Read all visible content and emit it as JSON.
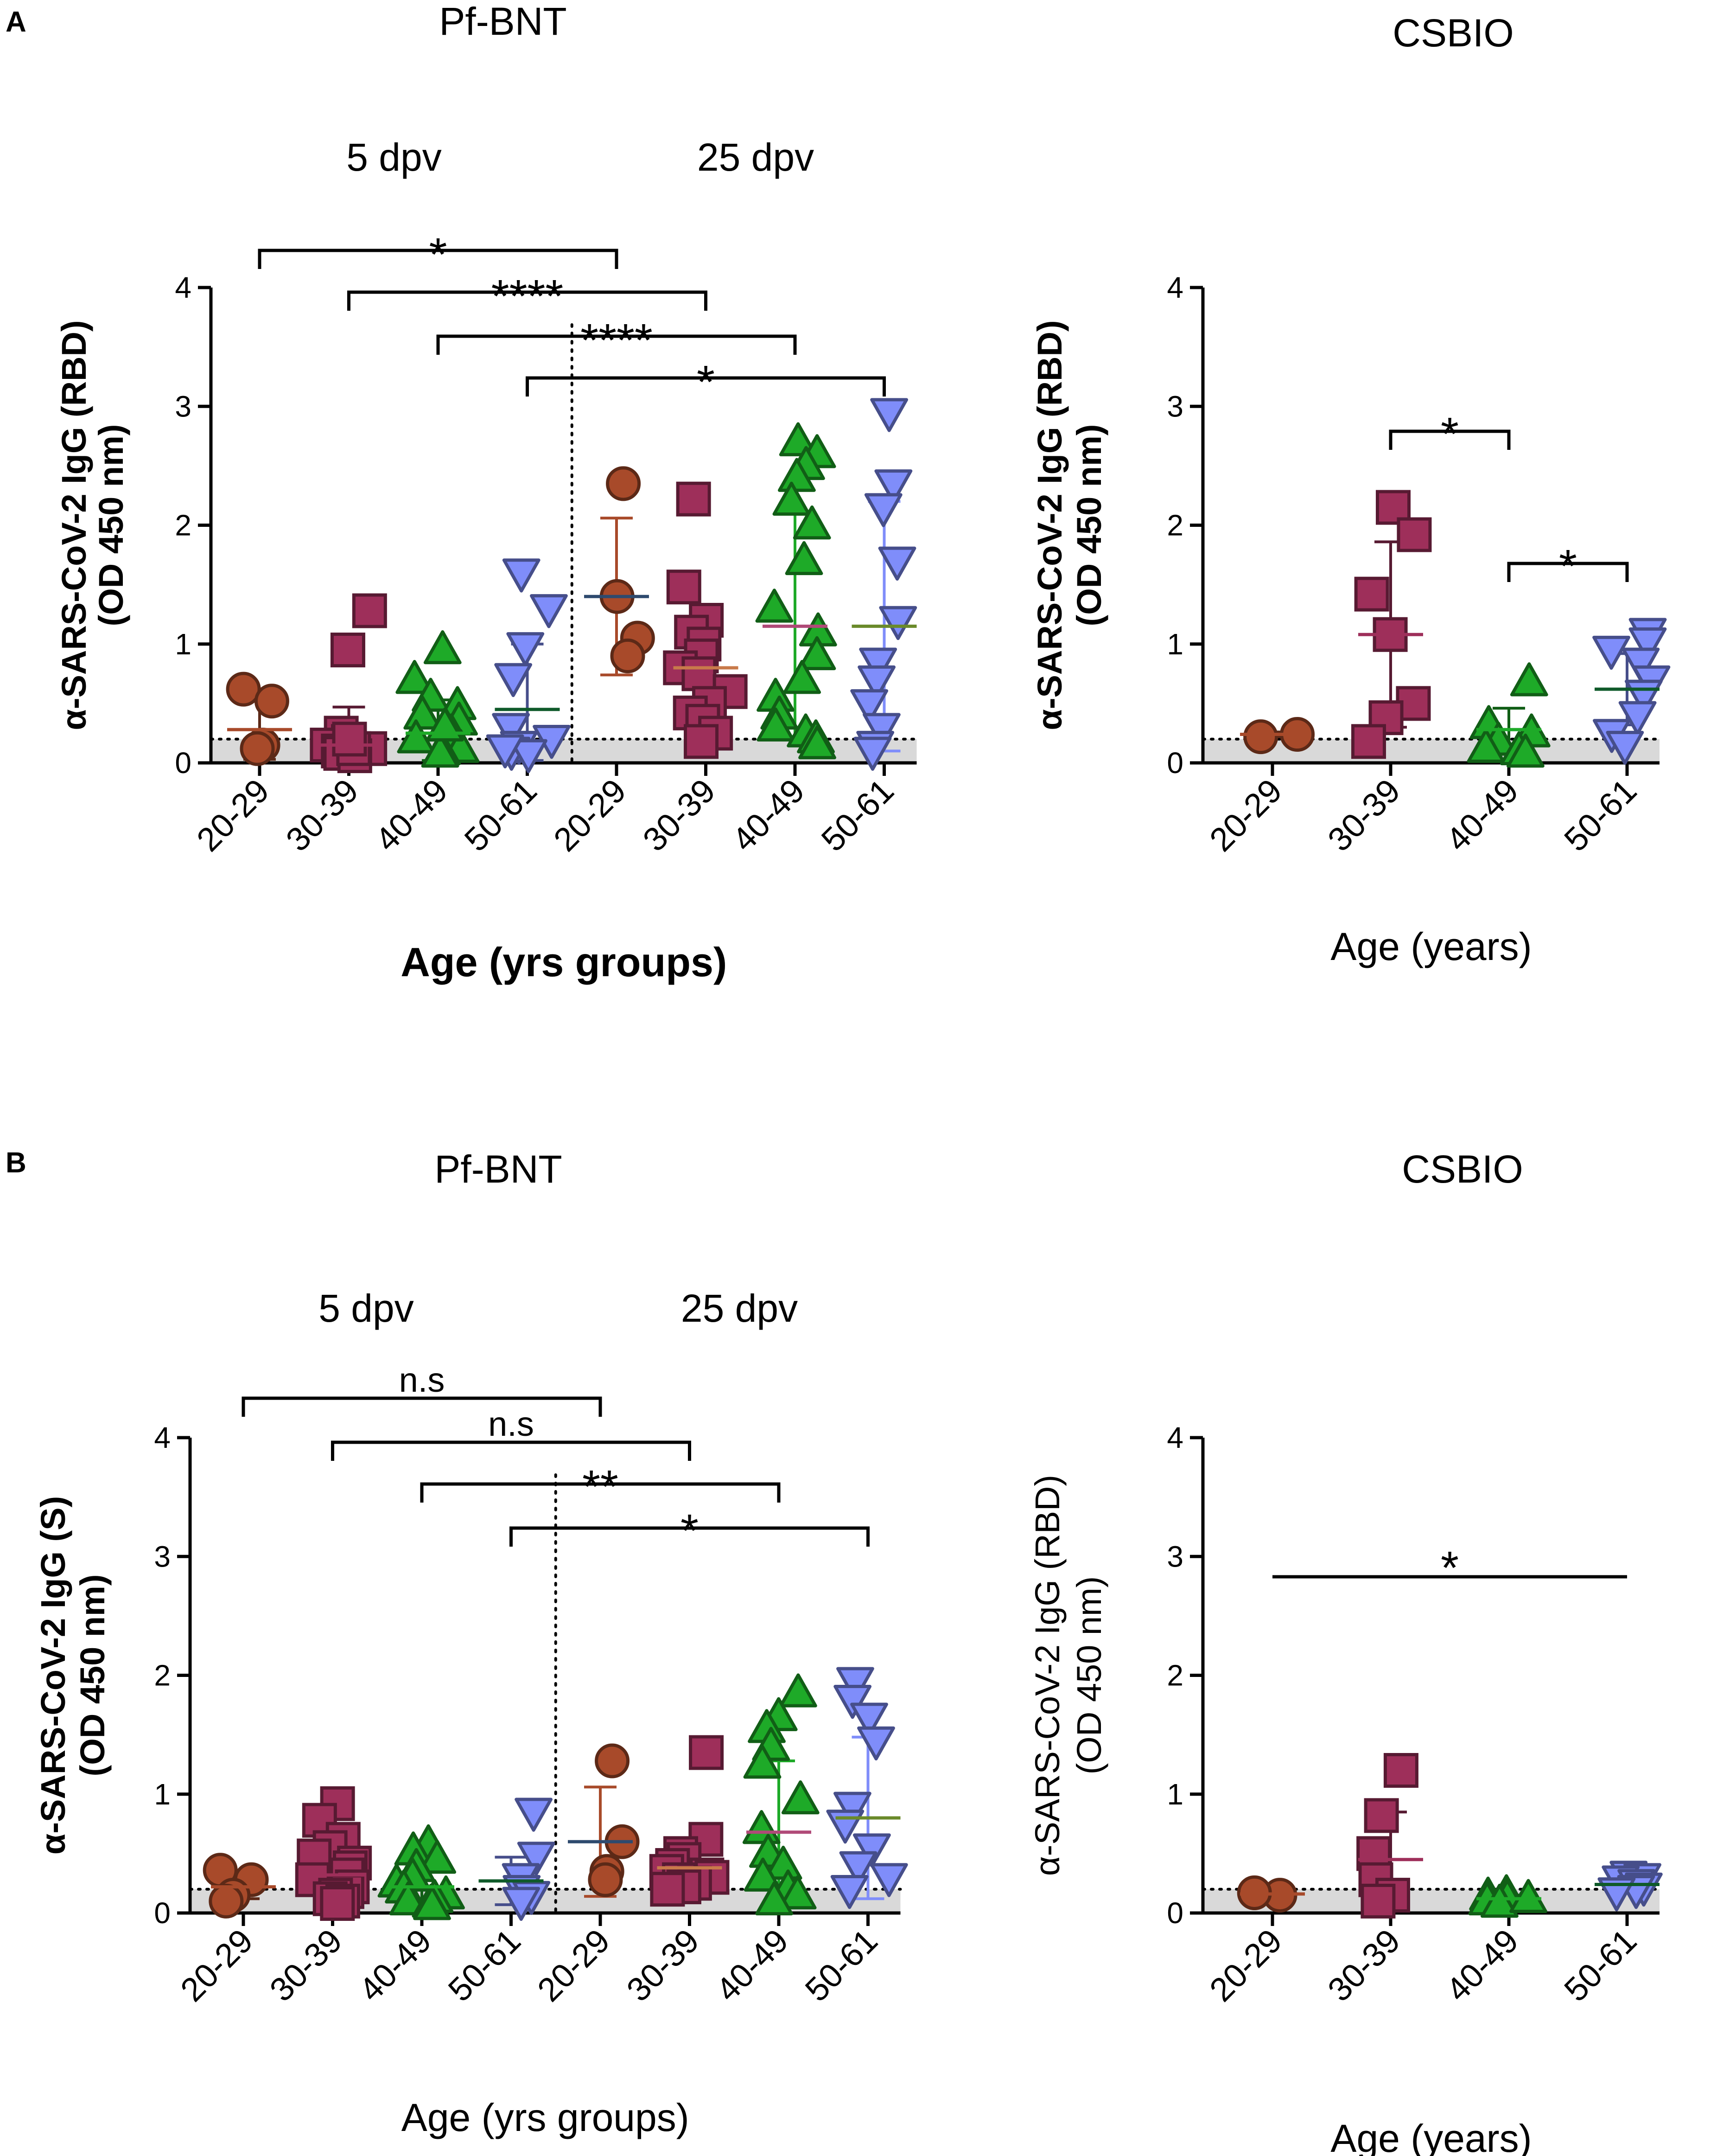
{
  "figure": {
    "panels": [
      {
        "letter": "A"
      },
      {
        "letter": "B"
      }
    ]
  },
  "chart_data": [
    {
      "id": "A-left",
      "type": "scatter",
      "panel": "A",
      "title": "Pf-BNT",
      "group_labels": [
        "5 dpv",
        "25 dpv"
      ],
      "xlabel": "Age (yrs groups)",
      "ylabel_line1": "α-SARS-CoV-2 IgG (RBD)",
      "ylabel_line2": "(OD 450 nm)",
      "ylim": [
        0,
        4
      ],
      "yticks": [
        "0",
        "1",
        "2",
        "3",
        "4"
      ],
      "categories": [
        "20-29",
        "30-39",
        "40-49",
        "50-61",
        "20-29",
        "30-39",
        "40-49",
        "50-61"
      ],
      "cutoff": 0.2,
      "divider_after": 4,
      "series": [
        {
          "category": "20-29",
          "group": "5 dpv",
          "marker": "circle",
          "color": "#a84a2a",
          "mean": 0.28,
          "sd": 0.25,
          "points": [
            0.62,
            0.52,
            0.15,
            0.12
          ]
        },
        {
          "category": "30-39",
          "group": "5 dpv",
          "marker": "square",
          "color": "#9e2f5a",
          "mean": 0.15,
          "sd": 0.32,
          "points": [
            1.28,
            0.95,
            0.25,
            0.18,
            0.15,
            0.12,
            0.1,
            0.08,
            0.06,
            0.12,
            0.2
          ]
        },
        {
          "category": "40-49",
          "group": "5 dpv",
          "marker": "triangle-up",
          "color": "#1eaa28",
          "mean": 0.25,
          "sd": 0.28,
          "points": [
            0.95,
            0.7,
            0.55,
            0.48,
            0.4,
            0.35,
            0.3,
            0.25,
            0.2,
            0.15,
            0.12,
            0.1,
            0.08,
            0.3
          ]
        },
        {
          "category": "50-61",
          "group": "5 dpv",
          "marker": "triangle-down",
          "color": "#7f8dfa",
          "mean": 0.45,
          "sd": 0.55,
          "points": [
            1.6,
            1.3,
            0.98,
            0.72,
            0.3,
            0.2,
            0.15,
            0.1,
            0.08,
            0.12
          ]
        },
        {
          "category": "20-29",
          "group": "25 dpv",
          "marker": "circle",
          "color": "#a84a2a",
          "mean": 1.4,
          "sd": 0.66,
          "points": [
            2.35,
            1.4,
            1.05,
            0.9
          ]
        },
        {
          "category": "30-39",
          "group": "25 dpv",
          "marker": "square",
          "color": "#9e2f5a",
          "mean": 0.8,
          "sd": 0.5,
          "points": [
            2.22,
            1.48,
            1.2,
            1.1,
            1.0,
            0.9,
            0.8,
            0.75,
            0.6,
            0.5,
            0.42,
            0.35,
            0.25,
            0.18
          ]
        },
        {
          "category": "40-49",
          "group": "25 dpv",
          "marker": "triangle-up",
          "color": "#1eaa28",
          "mean": 1.15,
          "sd": 0.95,
          "points": [
            2.7,
            2.6,
            2.5,
            2.4,
            2.2,
            2.0,
            1.7,
            1.3,
            1.1,
            0.9,
            0.7,
            0.55,
            0.4,
            0.3,
            0.25,
            0.2,
            0.15
          ]
        },
        {
          "category": "50-61",
          "group": "25 dpv",
          "marker": "triangle-down",
          "color": "#7f8dfa",
          "mean": 1.15,
          "sd": 1.05,
          "points": [
            2.95,
            2.35,
            2.15,
            1.7,
            1.2,
            0.85,
            0.7,
            0.5,
            0.3,
            0.15,
            0.1
          ]
        }
      ],
      "mean_colors": [
        "#a84a2a",
        "#9e2f5a",
        "#1eaa28",
        "#0f5a2a",
        "#2e4a6e",
        "#c87a4a",
        "#b04a78",
        "#6a8a2a"
      ],
      "significance": [
        {
          "from": 0,
          "to": 4,
          "label": "*"
        },
        {
          "from": 1,
          "to": 5,
          "label": "****"
        },
        {
          "from": 2,
          "to": 6,
          "label": "****"
        },
        {
          "from": 3,
          "to": 7,
          "label": "*"
        }
      ]
    },
    {
      "id": "A-right",
      "type": "scatter",
      "panel": "A",
      "title": "CSBIO",
      "xlabel": "Age (years)",
      "ylabel_line1": "α-SARS-CoV-2 IgG (RBD)",
      "ylabel_line2": "(OD 450 nm)",
      "ylim": [
        0,
        4
      ],
      "yticks": [
        "0",
        "1",
        "2",
        "3",
        "4"
      ],
      "categories": [
        "20-29",
        "30-39",
        "40-49",
        "50-61"
      ],
      "cutoff": 0.2,
      "series": [
        {
          "category": "20-29",
          "marker": "circle",
          "color": "#a84a2a",
          "mean": 0.24,
          "sd": 0.02,
          "points": [
            0.22,
            0.24
          ]
        },
        {
          "category": "30-39",
          "marker": "square",
          "color": "#9e2f5a",
          "mean": 1.08,
          "sd": 0.78,
          "points": [
            2.15,
            1.92,
            1.42,
            1.08,
            0.5,
            0.38,
            0.18
          ]
        },
        {
          "category": "40-49",
          "marker": "triangle-up",
          "color": "#1eaa28",
          "mean": 0.28,
          "sd": 0.18,
          "points": [
            0.68,
            0.32,
            0.25,
            0.18,
            0.12,
            0.1,
            0.08
          ]
        },
        {
          "category": "50-61",
          "marker": "triangle-down",
          "color": "#7f8dfa",
          "mean": 0.62,
          "sd": 0.3,
          "points": [
            1.1,
            1.02,
            0.95,
            0.85,
            0.7,
            0.58,
            0.4,
            0.25,
            0.15
          ]
        }
      ],
      "mean_colors": [
        "#a84a2a",
        "#9e2f5a",
        "#1eaa28",
        "#0f5a2a"
      ],
      "significance": [
        {
          "from": 1,
          "to": 2,
          "label": "*"
        },
        {
          "from": 2,
          "to": 3,
          "label": "*"
        }
      ]
    },
    {
      "id": "B-left",
      "type": "scatter",
      "panel": "B",
      "title": "Pf-BNT",
      "group_labels": [
        "5 dpv",
        "25 dpv"
      ],
      "xlabel": "Age (yrs groups)",
      "ylabel_line1": "α-SARS-CoV-2 IgG (S)",
      "ylabel_line2": "(OD 450 nm)",
      "ylim": [
        0,
        4
      ],
      "yticks": [
        "0",
        "1",
        "2",
        "3",
        "4"
      ],
      "categories": [
        "20-29",
        "30-39",
        "40-49",
        "50-61",
        "20-29",
        "30-39",
        "40-49",
        "50-61"
      ],
      "cutoff": 0.2,
      "divider_after": 4,
      "series": [
        {
          "category": "20-29",
          "group": "5 dpv",
          "marker": "circle",
          "color": "#a84a2a",
          "mean": 0.22,
          "sd": 0.1,
          "points": [
            0.36,
            0.28,
            0.15,
            0.1
          ]
        },
        {
          "category": "30-39",
          "group": "5 dpv",
          "marker": "square",
          "color": "#9e2f5a",
          "mean": 0.32,
          "sd": 0.25,
          "points": [
            0.92,
            0.78,
            0.62,
            0.55,
            0.48,
            0.42,
            0.38,
            0.32,
            0.28,
            0.22,
            0.18,
            0.15,
            0.12,
            0.1,
            0.08
          ]
        },
        {
          "category": "40-49",
          "group": "5 dpv",
          "marker": "triangle-up",
          "color": "#1eaa28",
          "mean": 0.22,
          "sd": 0.2,
          "points": [
            0.58,
            0.52,
            0.45,
            0.38,
            0.3,
            0.25,
            0.2,
            0.15,
            0.12,
            0.1,
            0.08,
            0.06
          ]
        },
        {
          "category": "50-61",
          "group": "5 dpv",
          "marker": "triangle-down",
          "color": "#7f8dfa",
          "mean": 0.27,
          "sd": 0.2,
          "points": [
            0.85,
            0.48,
            0.3,
            0.2,
            0.15,
            0.1
          ]
        },
        {
          "category": "20-29",
          "group": "25 dpv",
          "marker": "circle",
          "color": "#a84a2a",
          "mean": 0.6,
          "sd": 0.46,
          "points": [
            1.28,
            0.6,
            0.35,
            0.28
          ]
        },
        {
          "category": "30-39",
          "group": "25 dpv",
          "marker": "square",
          "color": "#9e2f5a",
          "mean": 0.38,
          "sd": 0.2,
          "points": [
            1.35,
            0.62,
            0.5,
            0.45,
            0.4,
            0.35,
            0.32,
            0.3,
            0.28,
            0.25,
            0.22,
            0.2
          ]
        },
        {
          "category": "40-49",
          "group": "25 dpv",
          "marker": "triangle-up",
          "color": "#1eaa28",
          "mean": 0.68,
          "sd": 0.6,
          "points": [
            1.85,
            1.65,
            1.55,
            1.4,
            1.25,
            0.95,
            0.7,
            0.5,
            0.4,
            0.3,
            0.2,
            0.15,
            0.1
          ]
        },
        {
          "category": "50-61",
          "group": "25 dpv",
          "marker": "triangle-down",
          "color": "#7f8dfa",
          "mean": 0.8,
          "sd": 0.68,
          "points": [
            1.95,
            1.8,
            1.65,
            1.45,
            0.9,
            0.75,
            0.55,
            0.4,
            0.3,
            0.2
          ]
        }
      ],
      "mean_colors": [
        "#a84a2a",
        "#9e2f5a",
        "#1eaa28",
        "#0f5a2a",
        "#2e4a6e",
        "#c87a4a",
        "#b04a78",
        "#6a8a2a"
      ],
      "significance": [
        {
          "from": 0,
          "to": 4,
          "label": "n.s"
        },
        {
          "from": 1,
          "to": 5,
          "label": "n.s"
        },
        {
          "from": 2,
          "to": 6,
          "label": "**"
        },
        {
          "from": 3,
          "to": 7,
          "label": "*"
        }
      ]
    },
    {
      "id": "B-right",
      "type": "scatter",
      "panel": "B",
      "title": "CSBIO",
      "xlabel": "Age (years)",
      "ylabel_line1": "α-SARS-CoV-2 IgG (RBD)",
      "ylabel_line2": "(OD 450 nm)",
      "ylim": [
        0,
        4
      ],
      "yticks": [
        "0",
        "1",
        "2",
        "3",
        "4"
      ],
      "categories": [
        "20-29",
        "30-39",
        "40-49",
        "50-61"
      ],
      "cutoff": 0.2,
      "series": [
        {
          "category": "20-29",
          "marker": "circle",
          "color": "#a84a2a",
          "mean": 0.16,
          "sd": 0.02,
          "points": [
            0.15,
            0.17
          ]
        },
        {
          "category": "30-39",
          "marker": "square",
          "color": "#9e2f5a",
          "mean": 0.45,
          "sd": 0.4,
          "points": [
            1.2,
            0.82,
            0.5,
            0.28,
            0.15,
            0.1
          ]
        },
        {
          "category": "40-49",
          "marker": "triangle-up",
          "color": "#1eaa28",
          "mean": 0.12,
          "sd": 0.03,
          "points": [
            0.16,
            0.14,
            0.12,
            0.1,
            0.08,
            0.12
          ]
        },
        {
          "category": "50-61",
          "marker": "triangle-down",
          "color": "#7f8dfa",
          "mean": 0.24,
          "sd": 0.05,
          "points": [
            0.32,
            0.3,
            0.28,
            0.25,
            0.22,
            0.2,
            0.18
          ]
        }
      ],
      "mean_colors": [
        "#a84a2a",
        "#9e2f5a",
        "#1eaa28",
        "#0f5a2a"
      ],
      "significance": [
        {
          "from": 0,
          "to": 3,
          "label": "*",
          "style": "line"
        }
      ]
    }
  ]
}
